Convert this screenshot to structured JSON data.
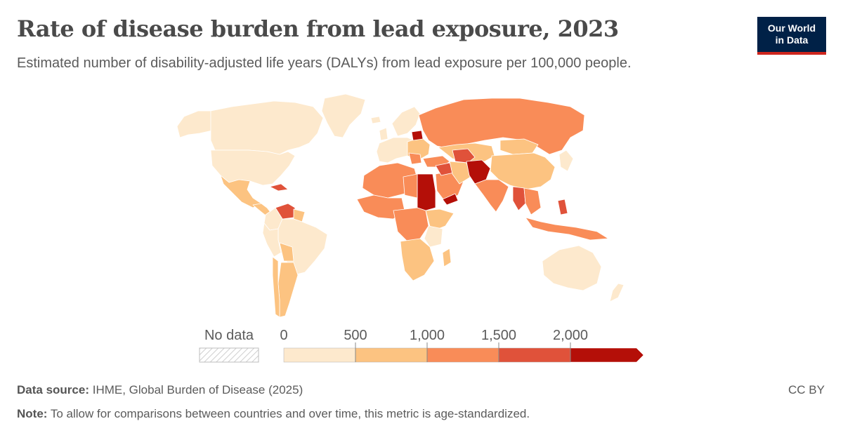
{
  "header": {
    "title": "Rate of disease burden from lead exposure, 2023",
    "subtitle": "Estimated number of disability-adjusted life years (DALYs) from lead exposure per 100,000 people.",
    "logo_line1": "Our World",
    "logo_line2": "in Data"
  },
  "legend": {
    "no_data_label": "No data",
    "ticks": [
      "0",
      "500",
      "1,000",
      "1,500",
      "2,000"
    ],
    "bins": [
      {
        "from": 0,
        "to": 500,
        "color": "#fde9cd"
      },
      {
        "from": 500,
        "to": 1000,
        "color": "#fcc381"
      },
      {
        "from": 1000,
        "to": 1500,
        "color": "#f98c58"
      },
      {
        "from": 1500,
        "to": 2000,
        "color": "#e0523a"
      },
      {
        "from": 2000,
        "to": null,
        "color": "#b40f08"
      }
    ]
  },
  "colors": {
    "no_data_hatch": "#cfcfcf",
    "border": "#ffffff",
    "title": "#4a4a4a",
    "logo_bg": "#002147",
    "logo_accent": "#ce261e"
  },
  "footer": {
    "source_label": "Data source:",
    "source_text": "IHME, Global Burden of Disease (2025)",
    "note_label": "Note:",
    "note_text": "To allow for comparisons between countries and over time, this metric is age-standardized.",
    "license": "CC BY"
  }
}
